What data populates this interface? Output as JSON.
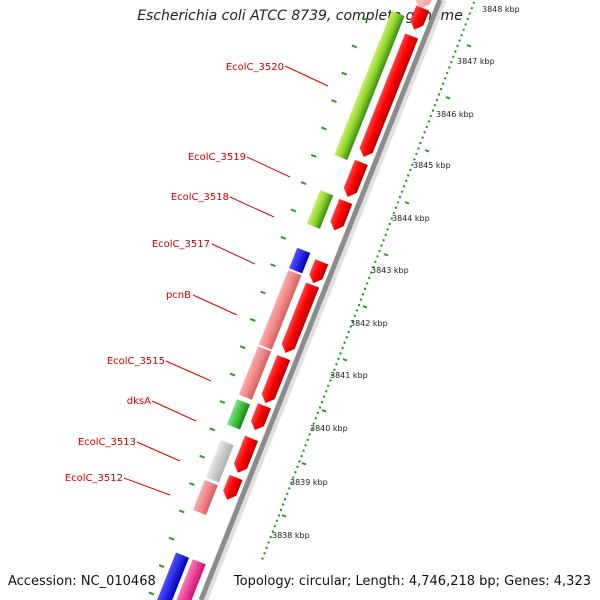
{
  "title": "Escherichia coli ATCC 8739, complete genome",
  "footer": {
    "accession_label": "Accession: NC_010468",
    "summary": "Topology: circular; Length: 4,746,218 bp; Genes: 4,323"
  },
  "genome": {
    "accession": "NC_010468",
    "topology": "circular",
    "length_bp": 4746218,
    "gene_count": 4323
  },
  "scale": {
    "unit": "kbp",
    "ticks": [
      "3838 kbp",
      "3839 kbp",
      "3840 kbp",
      "3841 kbp",
      "3842 kbp",
      "3843 kbp",
      "3844 kbp",
      "3845 kbp",
      "3846 kbp",
      "3847 kbp",
      "3848 kbp"
    ]
  },
  "genes": [
    {
      "name": "EcolC_3520",
      "color": "#7fcf2a"
    },
    {
      "name": "EcolC_3519",
      "color": "#ff0000"
    },
    {
      "name": "EcolC_3518",
      "color": "#7fcf2a"
    },
    {
      "name": "EcolC_3517",
      "color": "#1f1fe0"
    },
    {
      "name": "pcnB",
      "color": "#f08080"
    },
    {
      "name": "EcolC_3515",
      "color": "#f08080"
    },
    {
      "name": "dksA",
      "color": "#33bb33"
    },
    {
      "name": "EcolC_3513",
      "color": "#c8c8c8"
    },
    {
      "name": "EcolC_3512",
      "color": "#f08080"
    }
  ],
  "colors": {
    "label": "#cc0000",
    "backbone": "#909090",
    "tick": "#2a9a2a",
    "forward_strand": "#ff0000",
    "reverse_lime": "#7fcf2a",
    "reverse_green": "#33bb33",
    "reverse_pink": "#f08080",
    "reverse_gray": "#c8c8c8",
    "reverse_blue": "#1f1fe0",
    "reverse_magenta": "#ee3399"
  }
}
